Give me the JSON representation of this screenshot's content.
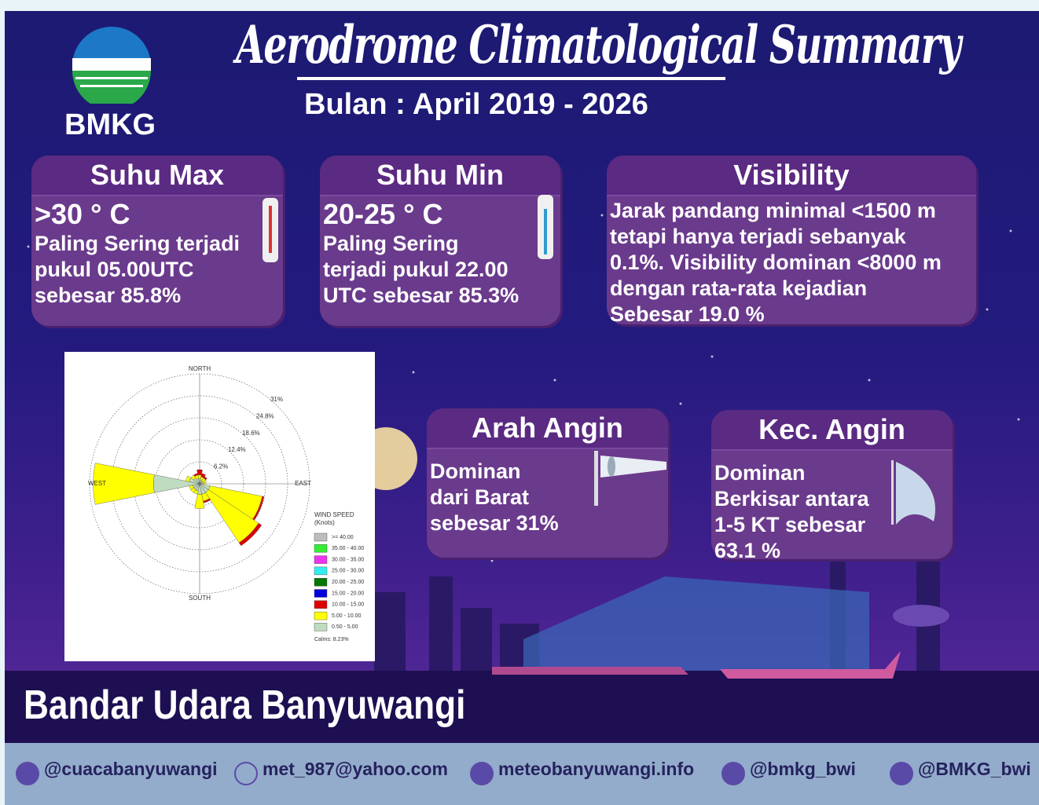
{
  "header": {
    "logo_text": "BMKG",
    "title": "Aerodrome Climatological Summary",
    "subtitle": "Bulan : April 2019 - 2026"
  },
  "cards": [
    {
      "title": "Suhu Max",
      "lines": [
        ">30 ° C",
        "Paling Sering terjadi",
        "pukul 05.00UTC",
        "sebesar 85.8%"
      ]
    },
    {
      "title": "Suhu Min",
      "lines": [
        "20-25 ° C",
        "Paling Sering",
        "terjadi pukul 22.00",
        "UTC sebesar 85.3%"
      ]
    },
    {
      "title": "Visibility",
      "lines": [
        "Jarak pandang minimal <1500 m",
        "tetapi hanya terjadi sebanyak",
        "0.1%. Visibility dominan <8000 m",
        "dengan rata-rata kejadian",
        "Sebesar 19.0 %"
      ]
    },
    {
      "title": "Arah Angin",
      "lines": [
        "Dominan",
        "dari Barat",
        "sebesar 31%"
      ]
    },
    {
      "title": "Kec. Angin",
      "lines": [
        "Dominan",
        "Berkisar antara",
        "1-5 KT sebesar",
        "63.1 %"
      ]
    }
  ],
  "chart_data": {
    "type": "windrose",
    "direction_labels": [
      "NORTH",
      "EAST",
      "SOUTH",
      "WEST"
    ],
    "legend_title": [
      "WIND SPEED",
      "(Knots)"
    ],
    "calms_label": "Calms: 8.23%",
    "x": [
      0,
      22.5,
      45,
      67.5,
      90,
      112.5,
      135,
      157.5,
      180,
      202.5,
      225,
      247.5,
      270,
      292.5,
      315,
      337.5
    ],
    "rlim": [
      0,
      31
    ],
    "rticks": [
      {
        "value": 6.2,
        "label": "6.2%"
      },
      {
        "value": 12.4,
        "label": "12.4%"
      },
      {
        "value": 18.6,
        "label": "18.6%"
      },
      {
        "value": 24.8,
        "label": "24.8%"
      },
      {
        "value": 31,
        "label": "31%"
      }
    ],
    "series": [
      {
        "name": ">= 40.00",
        "color": "#bdbdbd",
        "values": [
          0,
          0,
          0,
          0,
          0,
          0,
          0,
          0,
          0,
          0,
          0,
          0,
          0,
          0,
          0,
          0
        ]
      },
      {
        "name": "35.00 - 40.00",
        "color": "#33ee33",
        "values": [
          0,
          0,
          0,
          0,
          0,
          0,
          0,
          0,
          0,
          0,
          0,
          0,
          0,
          0,
          0,
          0
        ]
      },
      {
        "name": "30.00 - 35.00",
        "color": "#ee33ee",
        "values": [
          0,
          0,
          0,
          0,
          0,
          0,
          0,
          0,
          0,
          0,
          0,
          0,
          0,
          0,
          0,
          0
        ]
      },
      {
        "name": "25.00 - 30.00",
        "color": "#33eeee",
        "values": [
          0,
          0,
          0,
          0,
          0,
          0,
          0,
          0,
          0,
          0,
          0,
          0,
          0,
          0,
          0,
          0
        ]
      },
      {
        "name": "20.00 - 25.00",
        "color": "#007700",
        "values": [
          0,
          0,
          0,
          0,
          0,
          0,
          0,
          0,
          0,
          0,
          0,
          0,
          0,
          0,
          0,
          0
        ]
      },
      {
        "name": "15.00 - 20.00",
        "color": "#0000dd",
        "values": [
          0,
          0,
          0,
          0,
          0,
          0,
          0,
          0,
          0,
          0,
          0,
          0,
          0,
          0,
          0,
          0
        ]
      },
      {
        "name": "10.00 - 15.00",
        "color": "#dd0000",
        "values": [
          1.5,
          1,
          0.5,
          0,
          0,
          0.5,
          1,
          0.5,
          0,
          0,
          0,
          0,
          0,
          0,
          0,
          0.5
        ]
      },
      {
        "name": "5.00 - 10.00",
        "color": "#ffff00",
        "values": [
          1,
          1,
          1,
          1,
          0.5,
          15,
          17,
          2,
          4,
          1,
          1,
          1,
          17,
          1,
          1,
          1
        ]
      },
      {
        "name": "0.50 - 5.00",
        "color": "#c0dcc0",
        "values": [
          1.5,
          1,
          1,
          1,
          1,
          3,
          3,
          3,
          3,
          2,
          2,
          2,
          13,
          3,
          2,
          1.5
        ]
      }
    ]
  },
  "location": "Bandar Udara Banyuwangi",
  "footer": {
    "contacts": [
      "@cuacabanyuwangi",
      "met_987@yahoo.com",
      "meteobanyuwangi.info",
      "@bmkg_bwi",
      "@BMKG_bwi"
    ]
  }
}
